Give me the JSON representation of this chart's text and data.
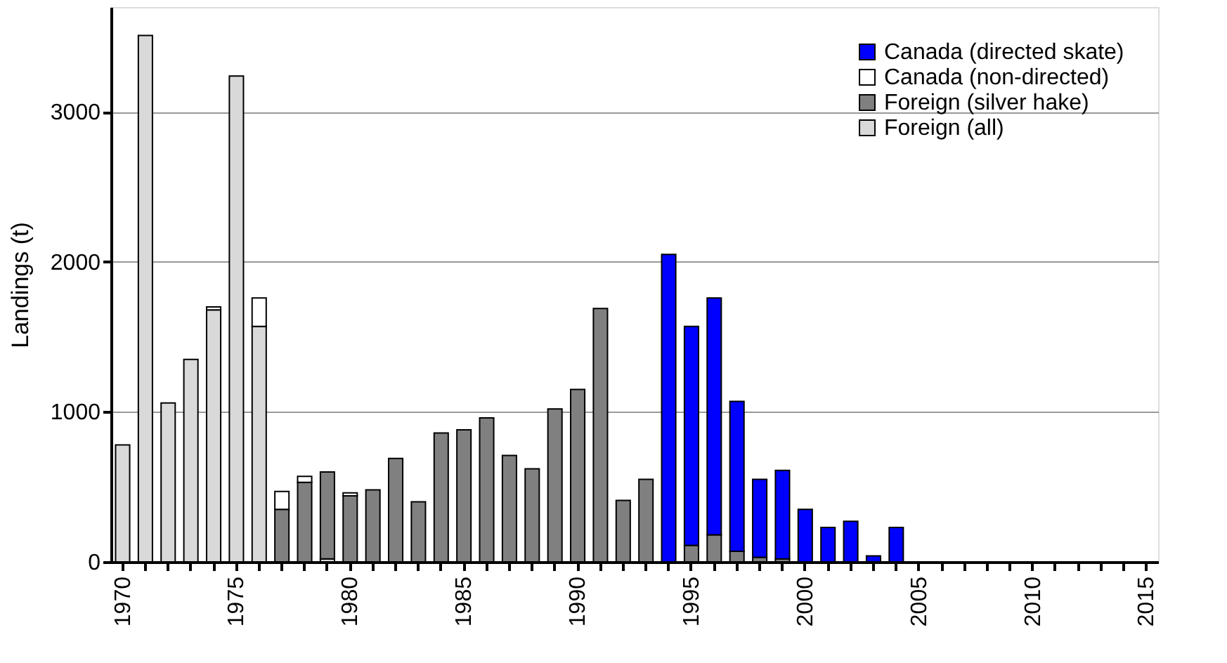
{
  "chart_data": {
    "type": "bar",
    "stacked": true,
    "ylabel": "Landings  (t)",
    "categories": [
      "1970",
      null,
      null,
      null,
      null,
      "1975",
      null,
      null,
      null,
      null,
      "1980",
      null,
      null,
      null,
      null,
      "1985",
      null,
      null,
      null,
      null,
      "1990",
      null,
      null,
      null,
      null,
      "1995",
      null,
      null,
      null,
      null,
      "2000",
      null,
      null,
      null,
      null,
      "2005",
      null,
      null,
      null,
      null,
      "2010",
      null,
      null,
      null,
      null,
      "2015"
    ],
    "series": [
      {
        "name": "Foreign (all)",
        "color": "#d9d9d9",
        "values": [
          780,
          3510,
          1060,
          1350,
          1680,
          3240,
          1570,
          null,
          null,
          20,
          null,
          null,
          null,
          null,
          null,
          null,
          null,
          null,
          null,
          null,
          null,
          null,
          null,
          null,
          null,
          null,
          null,
          null,
          null,
          null,
          null,
          null,
          null,
          null,
          null,
          null,
          null,
          null,
          null,
          null,
          null,
          null,
          null,
          null,
          null,
          null
        ]
      },
      {
        "name": "Foreign (silver hake)",
        "color": "#808080",
        "values": [
          null,
          null,
          null,
          null,
          null,
          null,
          null,
          350,
          530,
          580,
          440,
          480,
          690,
          400,
          860,
          880,
          960,
          710,
          620,
          1020,
          1150,
          1690,
          410,
          550,
          null,
          110,
          180,
          70,
          30,
          20,
          null,
          null,
          null,
          null,
          null,
          null,
          null,
          null,
          null,
          null,
          null,
          null,
          null,
          null,
          null,
          null
        ]
      },
      {
        "name": "Canada (non-directed)",
        "color": "#ffffff",
        "values": [
          null,
          null,
          null,
          null,
          20,
          null,
          190,
          120,
          40,
          null,
          20,
          null,
          null,
          null,
          null,
          null,
          null,
          null,
          null,
          null,
          null,
          null,
          null,
          null,
          null,
          null,
          null,
          null,
          null,
          null,
          null,
          null,
          null,
          null,
          null,
          null,
          null,
          null,
          null,
          null,
          null,
          null,
          null,
          null,
          null,
          null
        ]
      },
      {
        "name": "Canada (directed skate)",
        "color": "#0000ff",
        "values": [
          null,
          null,
          null,
          null,
          null,
          null,
          null,
          null,
          null,
          null,
          null,
          null,
          null,
          null,
          null,
          null,
          null,
          null,
          null,
          null,
          null,
          null,
          null,
          null,
          2050,
          1460,
          1580,
          1000,
          520,
          590,
          350,
          230,
          270,
          40,
          230,
          null,
          null,
          null,
          null,
          null,
          null,
          null,
          null,
          null,
          null,
          null
        ]
      }
    ],
    "ylim": [
      0,
      3700
    ],
    "yticks": [
      0,
      1000,
      2000,
      3000
    ],
    "grid": "y",
    "legend": "top right"
  }
}
